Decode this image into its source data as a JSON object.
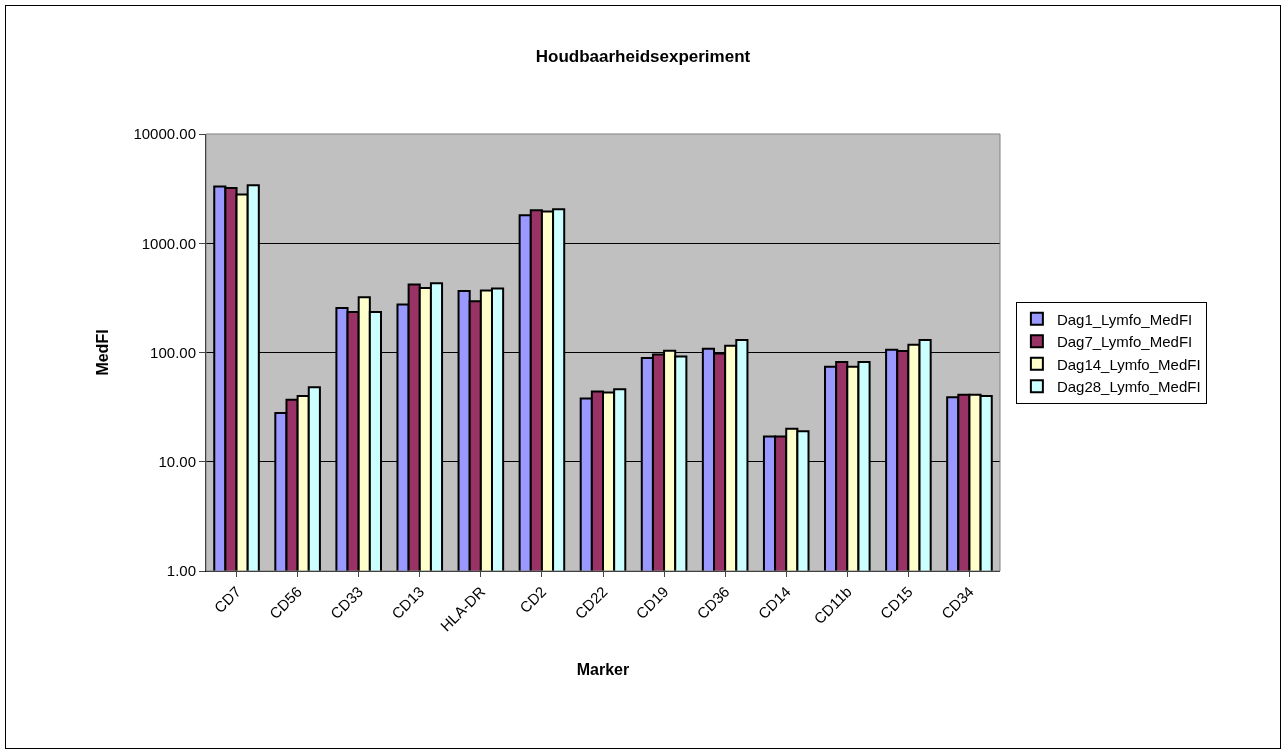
{
  "chart_data": {
    "type": "bar",
    "title": "Houdbaarheidsexperiment",
    "xlabel": "Marker",
    "ylabel": "MedFI",
    "categories": [
      "CD7",
      "CD56",
      "CD33",
      "CD13",
      "HLA-DR",
      "CD2",
      "CD22",
      "CD19",
      "CD36",
      "CD14",
      "CD11b",
      "CD15",
      "CD34"
    ],
    "series": [
      {
        "name": "Dag1_Lymfo_MedFI",
        "color": "#9999ff",
        "values": [
          3300,
          28,
          255,
          275,
          365,
          1800,
          38,
          89,
          108,
          17,
          74,
          106,
          39
        ]
      },
      {
        "name": "Dag7_Lymfo_MedFI",
        "color": "#993366",
        "values": [
          3200,
          37,
          235,
          420,
          295,
          2000,
          44,
          96,
          98,
          17,
          82,
          103,
          41
        ]
      },
      {
        "name": "Dag14_Lymfo_MedFI",
        "color": "#ffffcc",
        "values": [
          2800,
          40,
          320,
          390,
          370,
          1950,
          43,
          104,
          115,
          20,
          74,
          118,
          41
        ]
      },
      {
        "name": "Dag28_Lymfo_MedFI",
        "color": "#ccffff",
        "values": [
          3400,
          48,
          235,
          430,
          385,
          2050,
          46,
          92,
          130,
          19,
          82,
          130,
          40
        ]
      }
    ],
    "log": true,
    "ylim": [
      1,
      10000
    ],
    "yticks": [
      {
        "value": 1,
        "label": "1.00"
      },
      {
        "value": 10,
        "label": "10.00"
      },
      {
        "value": 100,
        "label": "100.00"
      },
      {
        "value": 1000,
        "label": "1000.00"
      },
      {
        "value": 10000,
        "label": "10000.00"
      }
    ],
    "grid": "y",
    "legend": "right"
  }
}
